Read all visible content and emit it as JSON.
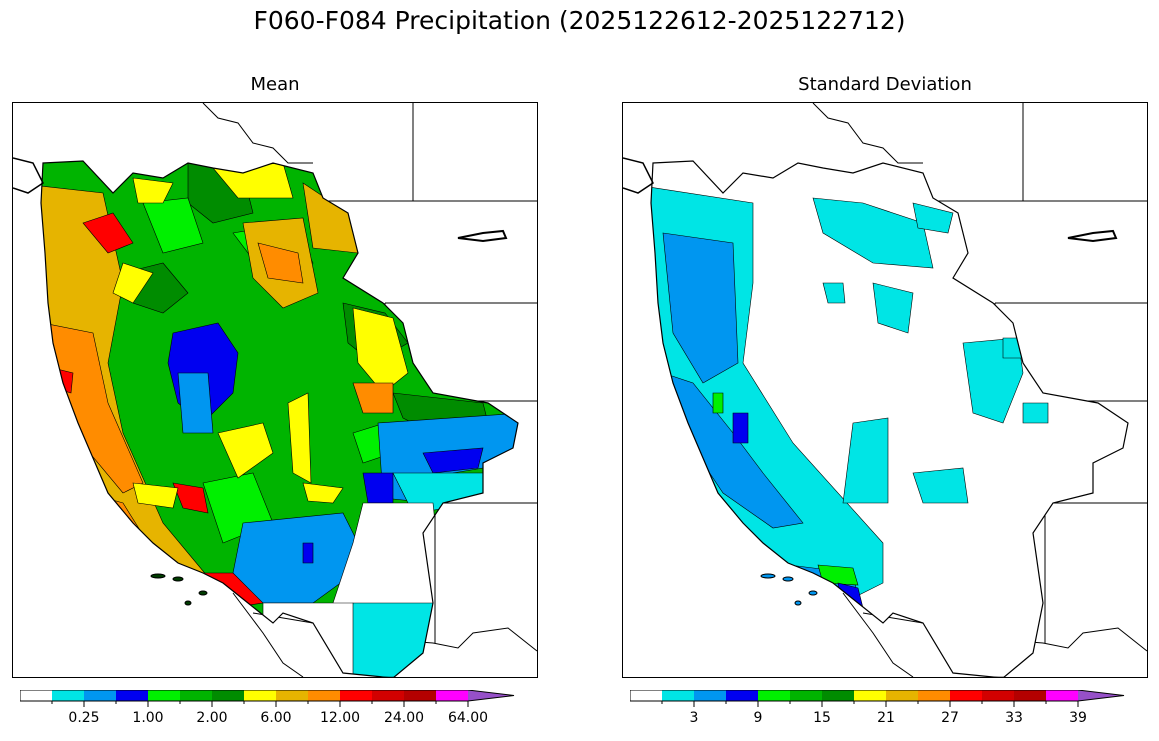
{
  "title": "F060-F084 Precipitation (2025122612-2025122712)",
  "panels": [
    {
      "id": "mean",
      "title": "Mean",
      "colorbar": {
        "colors": [
          "#ffffff",
          "#00e5e5",
          "#0096f0",
          "#0000f0",
          "#00f000",
          "#00b400",
          "#008c00",
          "#ffff00",
          "#e6b400",
          "#ff8c00",
          "#ff0000",
          "#d20000",
          "#b40000",
          "#ff00ff",
          "#9650c8"
        ],
        "tick_labels": [
          "0.25",
          "1.00",
          "2.00",
          "6.00",
          "12.00",
          "24.00",
          "64.00"
        ],
        "extend": "max"
      }
    },
    {
      "id": "stddev",
      "title": "Standard Deviation",
      "colorbar": {
        "colors": [
          "#ffffff",
          "#00e5e5",
          "#0096f0",
          "#0000f0",
          "#00f000",
          "#00b400",
          "#008c00",
          "#ffff00",
          "#e6b400",
          "#ff8c00",
          "#ff0000",
          "#d20000",
          "#b40000",
          "#ff00ff",
          "#9650c8"
        ],
        "tick_labels": [
          "3",
          "9",
          "15",
          "21",
          "27",
          "33",
          "39"
        ],
        "extend": "max"
      }
    }
  ]
}
